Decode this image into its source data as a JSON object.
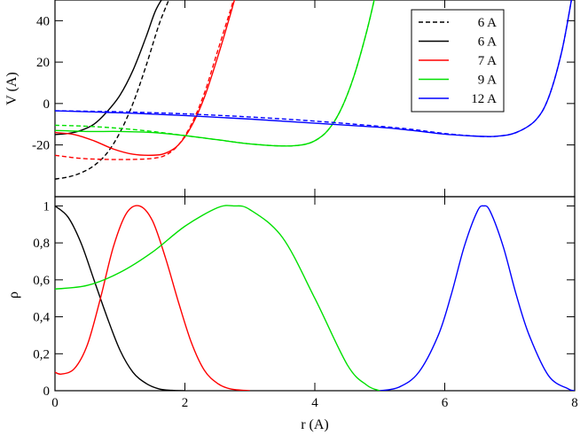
{
  "chart_data": [
    {
      "type": "line",
      "ylabel": "V  (A)",
      "xlim": [
        0,
        8
      ],
      "ylim": [
        -45,
        50
      ],
      "x_ticks": [
        "0",
        "2",
        "4",
        "6",
        "8"
      ],
      "y_ticks": [
        {
          "value": -20,
          "label": "-20"
        },
        {
          "value": 0,
          "label": "0"
        },
        {
          "value": 20,
          "label": "20"
        },
        {
          "value": 40,
          "label": "40"
        }
      ],
      "legend_position": "top-right",
      "legend": [
        {
          "label": "6 A",
          "color": "#000000",
          "dashed": true
        },
        {
          "label": "6 A",
          "color": "#000000",
          "dashed": false
        },
        {
          "label": "7 A",
          "color": "#ff0000",
          "dashed": false
        },
        {
          "label": "9 A",
          "color": "#00e000",
          "dashed": false
        },
        {
          "label": "12 A",
          "color": "#0000ff",
          "dashed": false
        }
      ],
      "series": [
        {
          "color": "#000000",
          "dashed": true,
          "x": [
            0,
            0.2,
            0.4,
            0.6,
            0.8,
            1.0,
            1.2,
            1.4,
            1.6,
            1.75,
            1.8
          ],
          "y": [
            -36.5,
            -35.5,
            -33.5,
            -30,
            -24,
            -14,
            0,
            18,
            38,
            50,
            55
          ]
        },
        {
          "color": "#000000",
          "dashed": false,
          "x": [
            0,
            0.2,
            0.4,
            0.6,
            0.8,
            1.0,
            1.2,
            1.4,
            1.55,
            1.7
          ],
          "y": [
            -15,
            -14.5,
            -13,
            -10,
            -4,
            4,
            16,
            32,
            45,
            53
          ]
        },
        {
          "color": "#ff0000",
          "dashed": true,
          "x": [
            0,
            0.4,
            0.8,
            1.2,
            1.5,
            1.7,
            1.9,
            2.1,
            2.3,
            2.5,
            2.7,
            2.85
          ],
          "y": [
            -25,
            -26.5,
            -27,
            -27,
            -26.5,
            -25,
            -20,
            -10,
            5,
            25,
            45,
            60
          ]
        },
        {
          "color": "#ff0000",
          "dashed": false,
          "x": [
            0,
            0.3,
            0.6,
            0.9,
            1.2,
            1.5,
            1.7,
            1.9,
            2.1,
            2.3,
            2.5,
            2.7,
            2.85
          ],
          "y": [
            -14,
            -15,
            -18,
            -22,
            -24.5,
            -25,
            -24,
            -20,
            -11,
            3,
            22,
            43,
            60
          ]
        },
        {
          "color": "#00e000",
          "dashed": true,
          "x": [
            0,
            0.5,
            1.0,
            1.5,
            2.0,
            2.5,
            3.0,
            3.5,
            3.8,
            4.0,
            4.2,
            4.4,
            4.6,
            4.8,
            4.95
          ],
          "y": [
            -10.5,
            -11,
            -12,
            -13.5,
            -15.5,
            -17.5,
            -19.5,
            -20.5,
            -20,
            -18,
            -13,
            -3,
            13,
            35,
            55
          ]
        },
        {
          "color": "#00e000",
          "dashed": false,
          "x": [
            0,
            0.5,
            1.0,
            1.5,
            2.0,
            2.5,
            3.0,
            3.5,
            3.8,
            4.0,
            4.2,
            4.4,
            4.6,
            4.8,
            4.95
          ],
          "y": [
            -13,
            -13.5,
            -13.5,
            -14,
            -15.5,
            -17.5,
            -19.5,
            -20.5,
            -20,
            -18,
            -13,
            -3,
            13,
            35,
            55
          ]
        },
        {
          "color": "#0000ff",
          "dashed": true,
          "x": [
            0,
            1,
            2,
            3,
            4,
            5,
            5.5,
            6,
            6.5,
            6.8,
            7.1,
            7.4,
            7.6,
            7.8,
            7.95
          ],
          "y": [
            -3.5,
            -4,
            -5,
            -6.5,
            -8.5,
            -11,
            -12.5,
            -14.5,
            -15.8,
            -15.8,
            -14,
            -8,
            3,
            25,
            50
          ]
        },
        {
          "color": "#0000ff",
          "dashed": false,
          "x": [
            0,
            1,
            2,
            3,
            4,
            5,
            5.5,
            6,
            6.5,
            6.8,
            7.1,
            7.4,
            7.6,
            7.8,
            7.95
          ],
          "y": [
            -3.5,
            -4.5,
            -5.8,
            -7.5,
            -9.5,
            -11.5,
            -13,
            -14.8,
            -15.8,
            -15.8,
            -14,
            -8,
            3,
            25,
            50
          ]
        }
      ]
    },
    {
      "type": "line",
      "xlabel": "r  (A)",
      "ylabel": "ρ",
      "xlim": [
        0,
        8
      ],
      "ylim": [
        0,
        1.05
      ],
      "x_ticks": [
        "0",
        "2",
        "4",
        "6",
        "8"
      ],
      "y_ticks": [
        {
          "value": 0,
          "label": "0"
        },
        {
          "value": 0.2,
          "label": "0,2"
        },
        {
          "value": 0.4,
          "label": "0,4"
        },
        {
          "value": 0.6,
          "label": "0,6"
        },
        {
          "value": 0.8,
          "label": "0,8"
        },
        {
          "value": 1.0,
          "label": "1"
        }
      ],
      "series": [
        {
          "color": "#000000",
          "x": [
            0,
            0.2,
            0.4,
            0.6,
            0.8,
            1.0,
            1.2,
            1.4,
            1.6,
            1.8,
            2.0
          ],
          "y": [
            1.0,
            0.94,
            0.8,
            0.6,
            0.4,
            0.22,
            0.1,
            0.04,
            0.01,
            0.002,
            0
          ]
        },
        {
          "color": "#ff0000",
          "x": [
            0,
            0.1,
            0.3,
            0.5,
            0.7,
            0.9,
            1.1,
            1.3,
            1.5,
            1.7,
            1.9,
            2.1,
            2.3,
            2.5,
            2.7,
            3.0
          ],
          "y": [
            0.1,
            0.09,
            0.12,
            0.25,
            0.5,
            0.78,
            0.96,
            1.0,
            0.92,
            0.72,
            0.48,
            0.26,
            0.11,
            0.04,
            0.01,
            0
          ]
        },
        {
          "color": "#00e000",
          "x": [
            0,
            0.5,
            1.0,
            1.5,
            2.0,
            2.5,
            2.75,
            3.0,
            3.5,
            4.0,
            4.5,
            4.8,
            5.0
          ],
          "y": [
            0.55,
            0.57,
            0.64,
            0.75,
            0.89,
            0.99,
            1.0,
            0.98,
            0.83,
            0.5,
            0.14,
            0.03,
            0
          ]
        },
        {
          "color": "#0000ff",
          "x": [
            5.0,
            5.3,
            5.6,
            5.9,
            6.1,
            6.3,
            6.5,
            6.6,
            6.7,
            6.9,
            7.1,
            7.3,
            7.6,
            7.9,
            8.0
          ],
          "y": [
            0,
            0.02,
            0.1,
            0.3,
            0.52,
            0.78,
            0.97,
            1.0,
            0.97,
            0.78,
            0.52,
            0.3,
            0.08,
            0.01,
            0
          ]
        }
      ]
    }
  ]
}
